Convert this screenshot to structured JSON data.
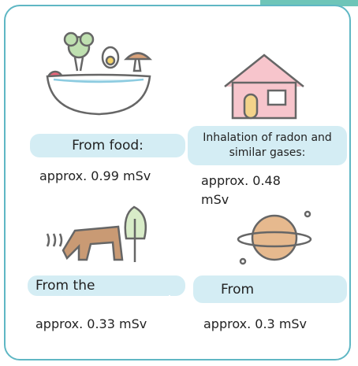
{
  "items": [
    {
      "label": "From food:",
      "amount": "approx. 0.99 mSv"
    },
    {
      "label": "Inhalation of radon and similar gases:",
      "amount": "approx. 0.48 mSv"
    },
    {
      "label": "From the",
      "amount": "approx. 0.33 mSv"
    },
    {
      "label": "From",
      "amount": "approx. 0.3 mSv"
    }
  ]
}
